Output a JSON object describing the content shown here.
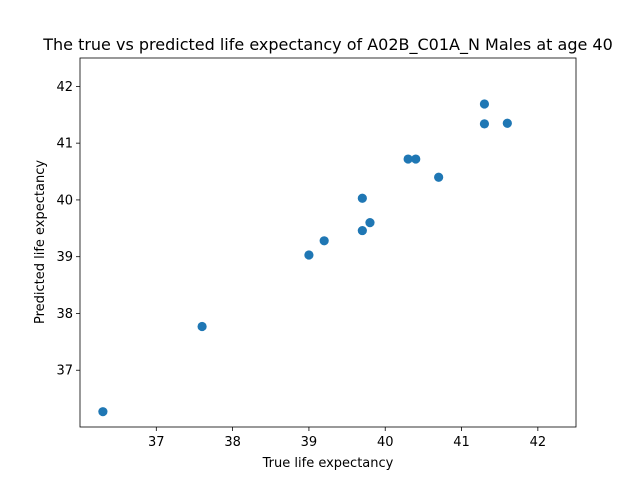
{
  "chart_data": {
    "type": "scatter",
    "title": "The true vs predicted life expectancy of A02B_C01A_N Males at age 40",
    "xlabel": "True life expectancy",
    "ylabel": "Predicted life expectancy",
    "xlim": [
      36.0,
      42.5
    ],
    "ylim": [
      36.0,
      42.5
    ],
    "xticks": [
      37,
      38,
      39,
      40,
      41,
      42
    ],
    "yticks": [
      37,
      38,
      39,
      40,
      41,
      42
    ],
    "grid": false,
    "point_color": "#1f77b4",
    "points": [
      {
        "x": 36.3,
        "y": 36.27
      },
      {
        "x": 37.6,
        "y": 37.77
      },
      {
        "x": 39.0,
        "y": 39.03
      },
      {
        "x": 39.2,
        "y": 39.28
      },
      {
        "x": 39.7,
        "y": 39.46
      },
      {
        "x": 39.8,
        "y": 39.6
      },
      {
        "x": 39.7,
        "y": 40.03
      },
      {
        "x": 40.3,
        "y": 40.72
      },
      {
        "x": 40.4,
        "y": 40.72
      },
      {
        "x": 40.7,
        "y": 40.4
      },
      {
        "x": 41.3,
        "y": 41.69
      },
      {
        "x": 41.3,
        "y": 41.34
      },
      {
        "x": 41.6,
        "y": 41.35
      }
    ]
  }
}
